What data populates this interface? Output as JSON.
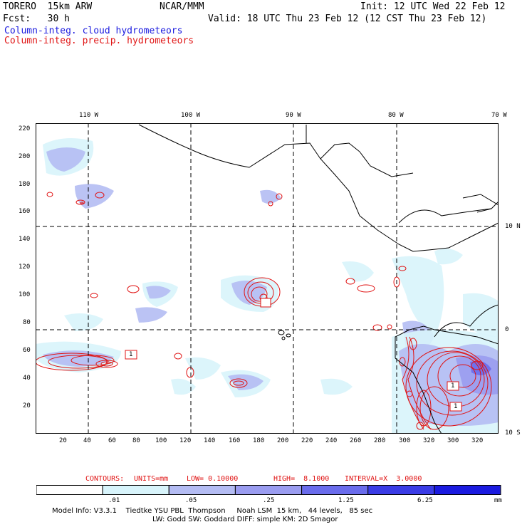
{
  "header": {
    "model": "TORERO  15km ARW",
    "org": "NCAR/MMM",
    "init": "Init: 12 UTC Wed 22 Feb 12",
    "fcst": "Fcst:   30 h",
    "valid": "Valid: 18 UTC Thu 23 Feb 12 (12 CST Thu 23 Feb 12)",
    "field1": "Column-integ. cloud hydrometeors",
    "field2": "Column-integ. precip. hydrometeors"
  },
  "map": {
    "lon_labels": [
      "110 W",
      "100 W",
      "90 W",
      "80 W",
      "70 W"
    ],
    "lat_labels": [
      "10 N",
      "0",
      "10 S"
    ],
    "y_ticks": [
      "220",
      "200",
      "180",
      "160",
      "140",
      "120",
      "100",
      "80",
      "60",
      "40",
      "20"
    ],
    "x_ticks": [
      "20",
      "40",
      "60",
      "80",
      "100",
      "120",
      "140",
      "160",
      "180",
      "200",
      "220",
      "240",
      "260",
      "280",
      "300",
      "320"
    ],
    "contour_labels": [
      "1",
      "1",
      "1"
    ]
  },
  "contour_info": {
    "prefix": "CONTOURS:",
    "units": "UNITS=mm",
    "low": "LOW= 0.10000",
    "high": "HIGH=  8.1000",
    "interval": "INTERVAL=X  3.0000"
  },
  "legend": {
    "values": [
      ".01",
      ".05",
      ".25",
      "1.25",
      "6.25"
    ],
    "unit": "mm",
    "colors": [
      "#ffffff",
      "#d8f4fb",
      "#b4bcf3",
      "#9a9cf0",
      "#6a6cec",
      "#3a3ce6",
      "#1a1ae0"
    ]
  },
  "footer": {
    "line1": "Model Info: V3.3.1    Tiedtke YSU PBL  Thompson     Noah LSM  15 km,   44 levels,   85 sec",
    "line2": "LW: Godd SW: Goddard DIFF: simple KM: 2D Smagor"
  }
}
